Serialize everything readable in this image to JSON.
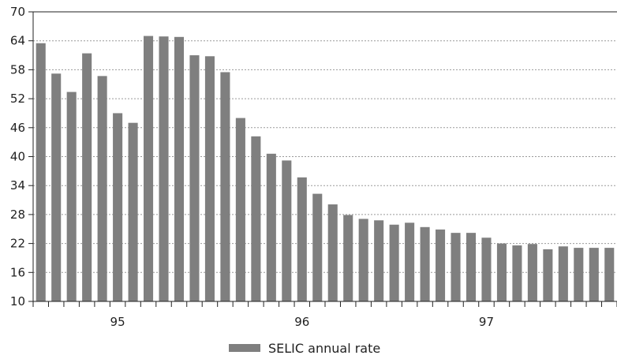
{
  "chart_data": {
    "type": "bar",
    "title": "",
    "xlabel": "",
    "ylabel": "",
    "ylim": [
      10,
      70
    ],
    "yticks": [
      10,
      16,
      22,
      28,
      34,
      40,
      46,
      52,
      58,
      64,
      70
    ],
    "grid": "horizontal-dotted",
    "legend_position": "bottom",
    "bar_color": "#7f7f7f",
    "x_labels": [
      {
        "label": "95",
        "index": 5
      },
      {
        "label": "96",
        "index": 17
      },
      {
        "label": "97",
        "index": 29
      }
    ],
    "series": [
      {
        "name": "SELIC annual rate",
        "values": [
          63.5,
          57.2,
          53.4,
          61.4,
          56.7,
          49.0,
          47.0,
          65.0,
          64.9,
          64.8,
          61.0,
          60.8,
          57.5,
          48.0,
          44.2,
          40.6,
          39.2,
          35.7,
          32.3,
          30.1,
          27.9,
          27.1,
          26.8,
          25.9,
          26.3,
          25.4,
          24.9,
          24.2,
          24.2,
          23.2,
          22.0,
          21.6,
          21.9,
          20.8,
          21.4,
          21.1,
          21.1,
          21.1
        ]
      }
    ]
  }
}
